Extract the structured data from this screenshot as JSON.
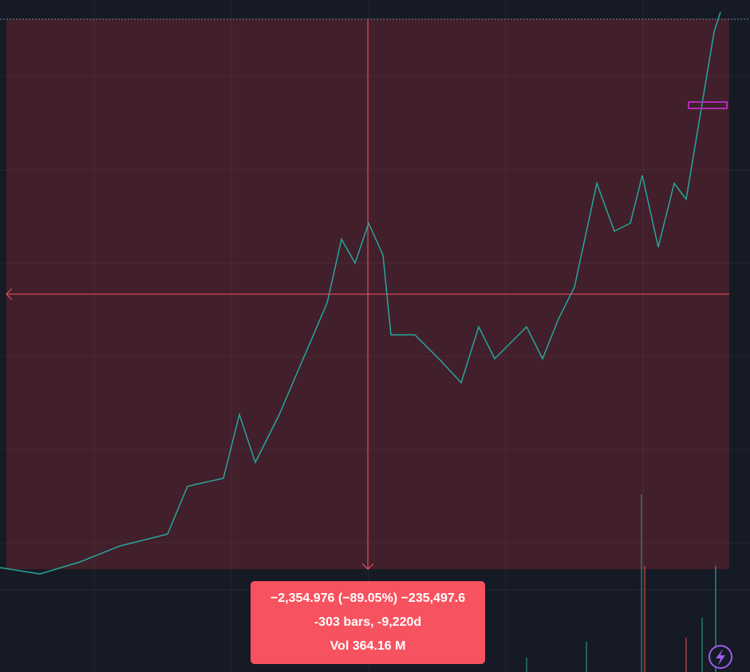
{
  "measure_tooltip": {
    "price_change": "−2,354.976 (−89.05%) −235,497.6",
    "bars": "-303 bars, -9,220d",
    "volume": "Vol 364.16 M"
  }
}
